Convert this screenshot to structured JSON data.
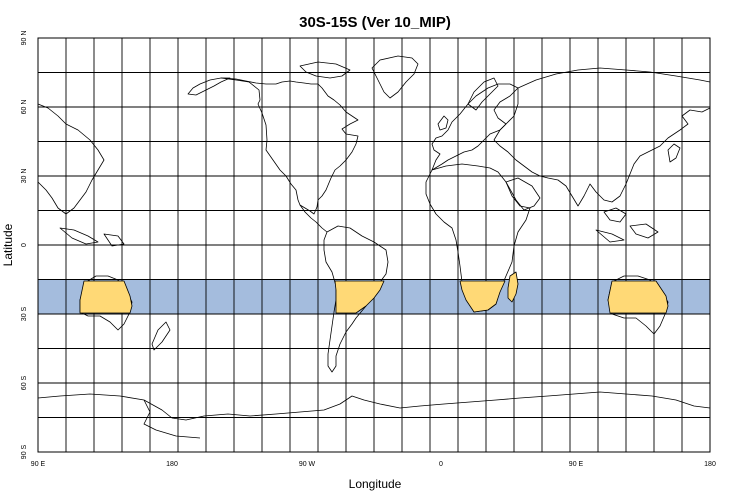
{
  "title": "30S-15S (Ver 10_MIP)",
  "xlabel": "Longitude",
  "ylabel": "Latitude",
  "projection": "equirectangular, centered on 90 W, spanning 90 E to 90 E (360 degrees)",
  "x_ticks": [
    "90 E",
    "180",
    "90 W",
    "0",
    "90 E",
    "180"
  ],
  "y_ticks": [
    "90 N",
    "60 N",
    "30 N",
    "0",
    "30 S",
    "60 S",
    "90 S"
  ],
  "grid": {
    "spacing_degrees": 15,
    "shown": true
  },
  "highlight_band": {
    "lat_from": -30,
    "lat_to": -15,
    "label": "30S-15S",
    "band_color": "#a4bcdd",
    "land_color": "#ffd976"
  },
  "colors": {
    "coastline": "#000000",
    "background": "#ffffff"
  }
}
